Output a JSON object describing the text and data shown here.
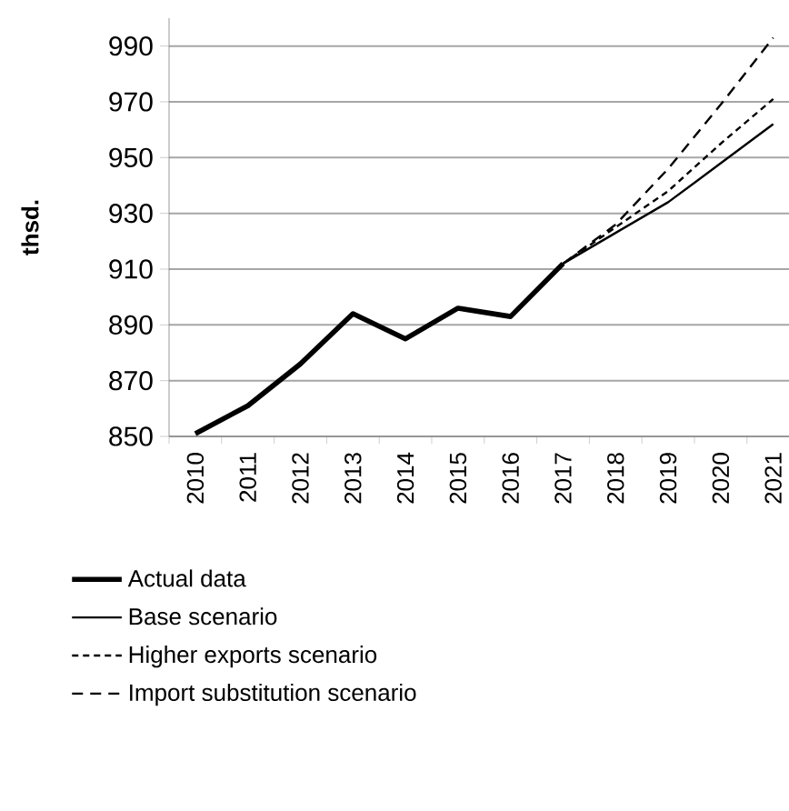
{
  "chart_data": {
    "type": "line",
    "ylabel": "thsd.",
    "categories": [
      "2010",
      "2011",
      "2012",
      "2013",
      "2014",
      "2015",
      "2016",
      "2017",
      "2018",
      "2019",
      "2020",
      "2021"
    ],
    "series": [
      {
        "name": "Actual data",
        "color": "#000000",
        "line_style": "solid",
        "values": [
          851,
          861,
          876,
          894,
          885,
          896,
          893,
          912,
          null,
          null,
          null,
          null
        ]
      },
      {
        "name": "Base scenario",
        "color": "#000000",
        "line_style": "solid",
        "values": [
          null,
          null,
          null,
          null,
          null,
          null,
          null,
          912,
          923,
          934,
          948,
          962
        ]
      },
      {
        "name": "Higher exports scenario",
        "color": "#000000",
        "line_style": "dotted",
        "values": [
          null,
          null,
          null,
          null,
          null,
          null,
          null,
          912,
          925,
          938,
          955,
          971
        ]
      },
      {
        "name": "Import substitution scenario",
        "color": "#000000",
        "line_style": "dashed",
        "values": [
          null,
          null,
          null,
          null,
          null,
          null,
          null,
          912,
          926,
          946,
          969,
          993
        ]
      }
    ],
    "ylim": [
      850,
      1000
    ],
    "yticks": [
      850,
      870,
      890,
      910,
      930,
      950,
      970,
      990
    ],
    "grid": "y",
    "legend": "bottom",
    "marker": "none"
  }
}
